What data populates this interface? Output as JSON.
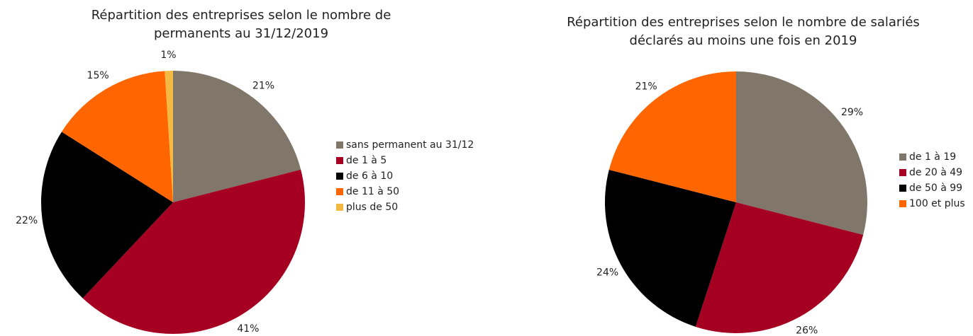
{
  "chart_data": [
    {
      "type": "pie",
      "title": [
        "Répartition des entreprises selon le nombre de",
        "permanents au 31/12/2019"
      ],
      "categories": [
        "sans permanent au 31/12",
        "de 1 à 5",
        "de 6 à 10",
        "de 11 à 50",
        "plus de 50"
      ],
      "values": [
        21,
        41,
        22,
        15,
        1
      ],
      "value_labels": [
        "21%",
        "41%",
        "22%",
        "15%",
        "1%"
      ],
      "colors": [
        "#80766a",
        "#a50021",
        "#000000",
        "#ff6600",
        "#f4b942"
      ],
      "legend": "right"
    },
    {
      "type": "pie",
      "title": [
        "Répartition des entreprises selon le nombre de salariés",
        "déclarés au moins une fois en 2019"
      ],
      "categories": [
        "de 1 à 19",
        "de 20 à 49",
        "de 50 à 99",
        "100 et plus"
      ],
      "values": [
        29,
        26,
        24,
        21
      ],
      "value_labels": [
        "29%",
        "26%",
        "24%",
        "21%"
      ],
      "colors": [
        "#80766a",
        "#a50021",
        "#000000",
        "#ff6600"
      ],
      "legend": "right"
    }
  ]
}
